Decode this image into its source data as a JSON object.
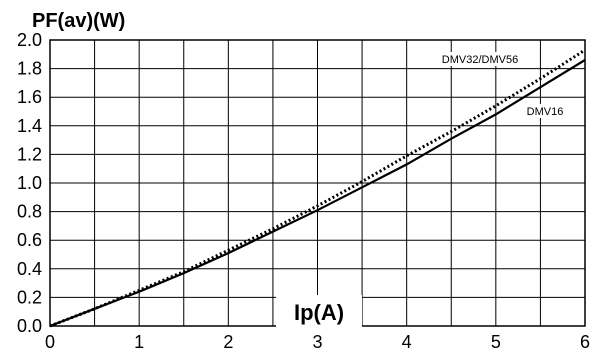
{
  "chart_data": {
    "type": "line",
    "title": "",
    "ylabel": "PF(av)(W)",
    "xlabel": "Ip(A)",
    "xlim": [
      0,
      6
    ],
    "ylim": [
      0,
      2.0
    ],
    "x_ticks": [
      "0",
      "1",
      "2",
      "3",
      "4",
      "5",
      "6"
    ],
    "y_ticks": [
      "0.0",
      "0.2",
      "0.4",
      "0.6",
      "0.8",
      "1.0",
      "1.2",
      "1.4",
      "1.6",
      "1.8",
      "2.0"
    ],
    "x_minor_step": 0.5,
    "grid": true,
    "series": [
      {
        "name": "DMV32/DMV56",
        "style": "dotted",
        "color": "#000000",
        "x": [
          0,
          0.5,
          1,
          1.5,
          2,
          2.5,
          3,
          3.5,
          4,
          4.5,
          5,
          5.5,
          6
        ],
        "y": [
          0,
          0.12,
          0.25,
          0.38,
          0.53,
          0.68,
          0.84,
          1.01,
          1.19,
          1.36,
          1.54,
          1.73,
          1.93
        ]
      },
      {
        "name": "DMV16",
        "style": "solid",
        "color": "#000000",
        "x": [
          0,
          0.5,
          1,
          1.5,
          2,
          2.5,
          3,
          3.5,
          4,
          4.5,
          5,
          5.5,
          6
        ],
        "y": [
          0,
          0.12,
          0.24,
          0.37,
          0.51,
          0.66,
          0.81,
          0.97,
          1.13,
          1.31,
          1.48,
          1.67,
          1.86
        ]
      }
    ]
  }
}
